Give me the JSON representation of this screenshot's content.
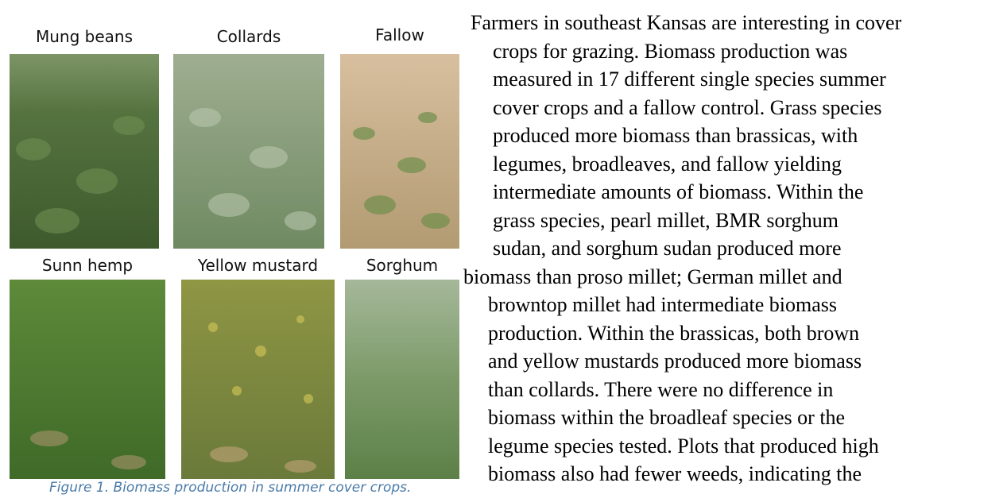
{
  "figure": {
    "panels": [
      {
        "label": "Mung beans"
      },
      {
        "label": "Collards"
      },
      {
        "label": "Fallow"
      },
      {
        "label": "Sunn hemp"
      },
      {
        "label": "Yellow mustard"
      },
      {
        "label": "Sorghum"
      }
    ],
    "caption": "Figure 1. Biomass production in summer cover crops."
  },
  "text": {
    "lines": [
      "Farmers in southeast Kansas are interesting in cover",
      "crops for grazing. Biomass production was",
      "measured in 17 different single species summer",
      "cover crops and a fallow control. Grass species",
      "produced more biomass than brassicas, with",
      "legumes, broadleaves, and fallow yielding",
      "intermediate amounts of biomass. Within the",
      "grass species, pearl millet, BMR sorghum",
      "sudan, and sorghum sudan produced more",
      "biomass than proso millet; German millet and",
      "browntop millet had intermediate biomass",
      "production. Within the brassicas, both brown",
      "and yellow mustards produced more biomass",
      "than collards. There were no difference in",
      "biomass within the broadleaf species or the",
      "legume species tested. Plots that produced high",
      "biomass also had fewer weeds, indicating the"
    ]
  }
}
